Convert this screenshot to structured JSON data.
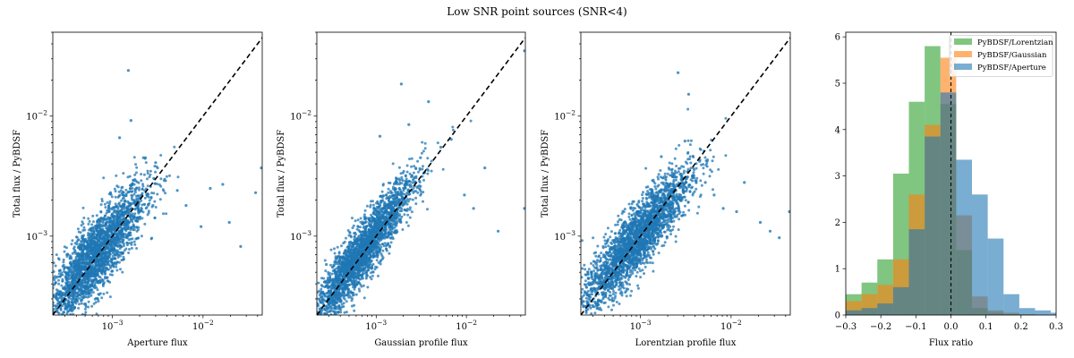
{
  "figure": {
    "title": "Low SNR point sources (SNR<4)"
  },
  "colors": {
    "scatter": "#1f77b4",
    "identity_line": "#000000",
    "hist_lorentzian": "#2ca02c",
    "hist_gaussian": "#ff7f0e",
    "hist_aperture": "#1f77b4"
  },
  "chart_data": [
    {
      "type": "scatter",
      "xlabel": "Aperture flux",
      "ylabel": "Total flux / PyBDSF",
      "xscale": "log",
      "yscale": "log",
      "xlim": [
        0.00022,
        0.045
      ],
      "ylim": [
        0.00022,
        0.05
      ],
      "x_tick_labels": [
        "10^-3",
        "10^-2"
      ],
      "y_tick_labels": [
        "10^-3",
        "10^-2"
      ],
      "reference_line": "y = x (dashed)",
      "cloud": {
        "center_log10": -3.2,
        "spread": 0.28,
        "slope": 0.9,
        "scatter": 0.16,
        "count": 2600
      },
      "outliers": [
        [
          0.0015,
          0.024
        ],
        [
          0.0022,
          0.0045
        ],
        [
          0.003,
          0.0041
        ],
        [
          0.0052,
          0.0024
        ],
        [
          0.0065,
          0.0018
        ],
        [
          0.0095,
          0.0012
        ],
        [
          0.012,
          0.0025
        ],
        [
          0.0165,
          0.0027
        ],
        [
          0.0195,
          0.0013
        ],
        [
          0.026,
          0.00082
        ],
        [
          0.038,
          0.0023
        ],
        [
          0.044,
          0.0037
        ],
        [
          0.0028,
          0.0018
        ],
        [
          0.0012,
          0.0066
        ],
        [
          0.0016,
          0.0092
        ]
      ]
    },
    {
      "type": "scatter",
      "xlabel": "Gaussian profile flux",
      "ylabel": "Total flux / PyBDSF",
      "xscale": "log",
      "yscale": "log",
      "xlim": [
        0.00022,
        0.045
      ],
      "ylim": [
        0.00022,
        0.05
      ],
      "x_tick_labels": [
        "10^-3",
        "10^-2"
      ],
      "y_tick_labels": [
        "10^-3",
        "10^-2"
      ],
      "reference_line": "y = x (dashed)",
      "cloud": {
        "center_log10": -3.15,
        "spread": 0.28,
        "slope": 1.0,
        "scatter": 0.12,
        "count": 2600
      },
      "outliers": [
        [
          0.0019,
          0.0185
        ],
        [
          0.0038,
          0.0132
        ],
        [
          0.0031,
          0.0045
        ],
        [
          0.0052,
          0.0055
        ],
        [
          0.0068,
          0.0064
        ],
        [
          0.0095,
          0.0022
        ],
        [
          0.012,
          0.0017
        ],
        [
          0.016,
          0.0037
        ],
        [
          0.0225,
          0.0011
        ],
        [
          0.044,
          0.0017
        ],
        [
          0.044,
          0.035
        ],
        [
          0.00028,
          0.00058
        ],
        [
          0.0011,
          0.0068
        ],
        [
          0.0023,
          0.0085
        ]
      ]
    },
    {
      "type": "scatter",
      "xlabel": "Lorentzian profile flux",
      "ylabel": "Total flux / PyBDSF",
      "xscale": "log",
      "yscale": "log",
      "xlim": [
        0.00022,
        0.045
      ],
      "ylim": [
        0.00022,
        0.05
      ],
      "x_tick_labels": [
        "10^-3",
        "10^-2"
      ],
      "y_tick_labels": [
        "10^-3",
        "10^-2"
      ],
      "reference_line": "y = x (dashed)",
      "cloud": {
        "center_log10": -3.05,
        "spread": 0.3,
        "slope": 0.85,
        "scatter": 0.14,
        "count": 2600
      },
      "outliers": [
        [
          0.0026,
          0.023
        ],
        [
          0.0034,
          0.0152
        ],
        [
          0.0021,
          0.0026
        ],
        [
          0.0052,
          0.0028
        ],
        [
          0.0082,
          0.0017
        ],
        [
          0.0115,
          0.0016
        ],
        [
          0.014,
          0.0028
        ],
        [
          0.021,
          0.0013
        ],
        [
          0.027,
          0.0011
        ],
        [
          0.034,
          0.00097
        ],
        [
          0.044,
          0.0016
        ],
        [
          0.0017,
          0.0046
        ],
        [
          0.0045,
          0.0042
        ],
        [
          0.0065,
          0.0022
        ],
        [
          0.0031,
          0.0062
        ]
      ]
    },
    {
      "type": "histogram",
      "xlabel": "Flux ratio",
      "ylabel": "",
      "xlim": [
        -0.3,
        0.3
      ],
      "ylim": [
        0,
        6.1
      ],
      "x_ticks": [
        -0.3,
        -0.2,
        -0.1,
        0.0,
        0.1,
        0.2,
        0.3
      ],
      "x_tick_labels": [
        "−0.3",
        "−0.2",
        "−0.1",
        "0.0",
        "0.1",
        "0.2",
        "0.3"
      ],
      "y_ticks": [
        0,
        1,
        2,
        3,
        4,
        5,
        6
      ],
      "y_tick_labels": [
        "0",
        "1",
        "2",
        "3",
        "4",
        "5",
        "6"
      ],
      "reference_line": "x = 0 (dashed)",
      "bin_edges": [
        -0.3,
        -0.255,
        -0.21,
        -0.165,
        -0.12,
        -0.075,
        -0.03,
        0.015,
        0.06,
        0.105,
        0.15,
        0.195,
        0.24,
        0.285,
        0.33
      ],
      "legend_position": "top-right",
      "series": [
        {
          "name": "PyBDSF/Lorentzian",
          "values": [
            0.45,
            0.7,
            1.2,
            3.05,
            4.6,
            5.8,
            4.55,
            1.4,
            0.15,
            0.05,
            0.02,
            0.0,
            0.0,
            0.0
          ]
        },
        {
          "name": "PyBDSF/Gaussian",
          "values": [
            0.3,
            0.45,
            0.65,
            1.2,
            2.6,
            4.1,
            5.55,
            2.15,
            0.4,
            0.1,
            0.05,
            0.02,
            0.0,
            0.0
          ]
        },
        {
          "name": "PyBDSF/Aperture",
          "values": [
            0.1,
            0.15,
            0.25,
            0.6,
            1.85,
            3.85,
            4.8,
            3.35,
            2.6,
            1.65,
            0.45,
            0.15,
            0.1,
            0.05
          ]
        }
      ]
    }
  ]
}
